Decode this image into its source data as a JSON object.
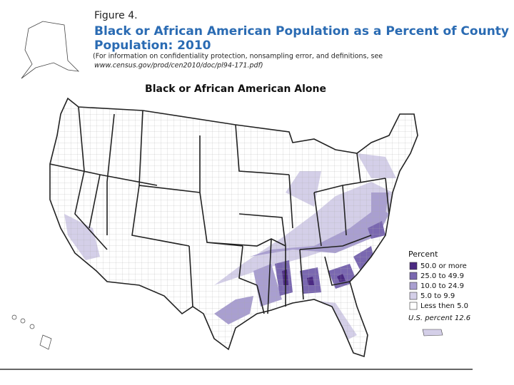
{
  "header": {
    "figure": "Figure 4.",
    "title_lines": [
      "Black or African American Population as a Percent of County",
      "Population: 2010"
    ],
    "note_lines": [
      "(For information on confidentiality protection, nonsampling error, and definitions, see",
      "www.census.gov/prod/cen2010/doc/pl94-171.pdf)"
    ]
  },
  "map": {
    "subtitle": "Black or African American Alone"
  },
  "legend": {
    "title": "Percent",
    "items": [
      {
        "label": "50.0 or more",
        "color": "#4b2a82"
      },
      {
        "label": "25.0 to 49.9",
        "color": "#7a68b0"
      },
      {
        "label": "10.0 to 24.9",
        "color": "#a99fd0"
      },
      {
        "label": "5.0 to 9.9",
        "color": "#d4cfe8"
      },
      {
        "label": "Less then 5.0",
        "color": "#ffffff"
      }
    ],
    "note": "U.S. percent 12.6"
  }
}
